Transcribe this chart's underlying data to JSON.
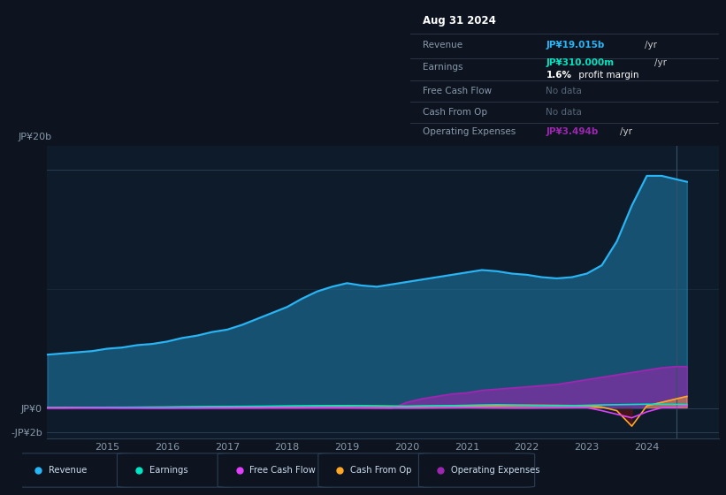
{
  "bg_color": "#0d1420",
  "chart_bg": "#0d1b2a",
  "title_date": "Aug 31 2024",
  "years": [
    2014.0,
    2014.25,
    2014.5,
    2014.75,
    2015.0,
    2015.25,
    2015.5,
    2015.75,
    2016.0,
    2016.25,
    2016.5,
    2016.75,
    2017.0,
    2017.25,
    2017.5,
    2017.75,
    2018.0,
    2018.25,
    2018.5,
    2018.75,
    2019.0,
    2019.25,
    2019.5,
    2019.75,
    2020.0,
    2020.25,
    2020.5,
    2020.75,
    2021.0,
    2021.25,
    2021.5,
    2021.75,
    2022.0,
    2022.25,
    2022.5,
    2022.75,
    2023.0,
    2023.25,
    2023.5,
    2023.75,
    2024.0,
    2024.25,
    2024.5,
    2024.67
  ],
  "revenue": [
    4.5,
    4.6,
    4.7,
    4.8,
    5.0,
    5.1,
    5.3,
    5.4,
    5.6,
    5.9,
    6.1,
    6.4,
    6.6,
    7.0,
    7.5,
    8.0,
    8.5,
    9.2,
    9.8,
    10.2,
    10.5,
    10.3,
    10.2,
    10.4,
    10.6,
    10.8,
    11.0,
    11.2,
    11.4,
    11.6,
    11.5,
    11.3,
    11.2,
    11.0,
    10.9,
    11.0,
    11.3,
    12.0,
    14.0,
    17.0,
    19.5,
    19.5,
    19.2,
    19.0
  ],
  "earnings": [
    0.05,
    0.05,
    0.06,
    0.07,
    0.08,
    0.08,
    0.09,
    0.09,
    0.1,
    0.12,
    0.13,
    0.14,
    0.15,
    0.16,
    0.17,
    0.18,
    0.19,
    0.2,
    0.21,
    0.22,
    0.22,
    0.2,
    0.18,
    0.16,
    0.15,
    0.18,
    0.2,
    0.22,
    0.25,
    0.28,
    0.3,
    0.28,
    0.25,
    0.22,
    0.2,
    0.22,
    0.25,
    0.28,
    0.3,
    0.32,
    0.34,
    0.33,
    0.32,
    0.31
  ],
  "free_cash_flow": [
    0.02,
    0.02,
    0.03,
    0.03,
    0.03,
    0.02,
    0.02,
    0.01,
    0.01,
    0.02,
    0.02,
    0.03,
    0.03,
    0.04,
    0.04,
    0.05,
    0.05,
    0.05,
    0.06,
    0.06,
    0.05,
    0.04,
    0.03,
    0.02,
    0.01,
    0.02,
    0.03,
    0.04,
    0.05,
    0.04,
    0.03,
    0.02,
    0.02,
    0.03,
    0.04,
    0.05,
    0.06,
    -0.2,
    -0.5,
    -0.8,
    -0.3,
    0.05,
    0.1,
    0.2
  ],
  "cash_from_op": [
    0.05,
    0.06,
    0.07,
    0.07,
    0.08,
    0.08,
    0.08,
    0.09,
    0.09,
    0.1,
    0.11,
    0.12,
    0.13,
    0.14,
    0.15,
    0.16,
    0.17,
    0.18,
    0.19,
    0.2,
    0.21,
    0.2,
    0.19,
    0.18,
    0.17,
    0.18,
    0.19,
    0.2,
    0.21,
    0.22,
    0.23,
    0.24,
    0.25,
    0.25,
    0.24,
    0.23,
    0.22,
    0.1,
    -0.2,
    -1.5,
    0.2,
    0.5,
    0.8,
    1.0
  ],
  "op_expenses": [
    0.0,
    0.0,
    0.0,
    0.0,
    0.0,
    0.0,
    0.0,
    0.0,
    0.0,
    0.0,
    0.0,
    0.0,
    0.0,
    0.0,
    0.0,
    0.0,
    0.0,
    0.0,
    0.0,
    0.0,
    0.0,
    0.0,
    0.0,
    0.0,
    0.5,
    0.8,
    1.0,
    1.2,
    1.3,
    1.5,
    1.6,
    1.7,
    1.8,
    1.9,
    2.0,
    2.2,
    2.4,
    2.6,
    2.8,
    3.0,
    3.2,
    3.4,
    3.5,
    3.5
  ],
  "colors": {
    "revenue": "#29b6f6",
    "earnings": "#00e5c3",
    "free_cash_flow": "#e040fb",
    "cash_from_op": "#ffa726",
    "op_expenses": "#9c27b0"
  },
  "ylim": [
    -2.5,
    22.0
  ],
  "xlim": [
    2014.0,
    2025.2
  ],
  "xtick_positions": [
    2015,
    2016,
    2017,
    2018,
    2019,
    2020,
    2021,
    2022,
    2023,
    2024
  ],
  "xtick_labels": [
    "2015",
    "2016",
    "2017",
    "2018",
    "2019",
    "2020",
    "2021",
    "2022",
    "2023",
    "2024"
  ]
}
